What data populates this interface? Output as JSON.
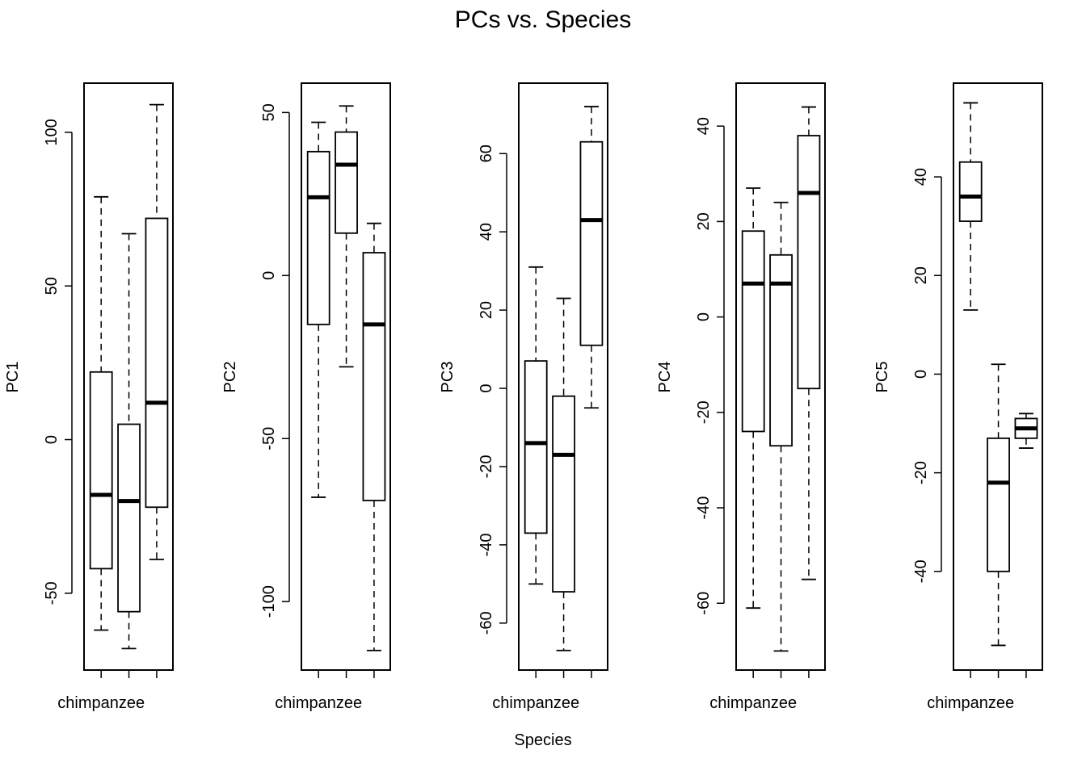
{
  "figure": {
    "title": "PCs vs. Species",
    "xlabel": "Species"
  },
  "chart_data": [
    {
      "type": "box",
      "ylabel": "PC1",
      "categories": [
        "chimpanzee",
        "",
        ""
      ],
      "visible_category_label": "chimpanzee",
      "ylim": [
        -75,
        116
      ],
      "yticks": [
        -50,
        0,
        50,
        100
      ],
      "boxes": [
        {
          "whisker_low": -62,
          "q1": -42,
          "median": -18,
          "q3": 22,
          "whisker_high": 79
        },
        {
          "whisker_low": -68,
          "q1": -56,
          "median": -20,
          "q3": 5,
          "whisker_high": 67
        },
        {
          "whisker_low": -39,
          "q1": -22,
          "median": 12,
          "q3": 72,
          "whisker_high": 109
        }
      ]
    },
    {
      "type": "box",
      "ylabel": "PC2",
      "categories": [
        "chimpanzee",
        "",
        ""
      ],
      "visible_category_label": "chimpanzee",
      "ylim": [
        -121,
        59
      ],
      "yticks": [
        -100,
        -50,
        0,
        50
      ],
      "boxes": [
        {
          "whisker_low": -68,
          "q1": -15,
          "median": 24,
          "q3": 38,
          "whisker_high": 47
        },
        {
          "whisker_low": -28,
          "q1": 13,
          "median": 34,
          "q3": 44,
          "whisker_high": 52
        },
        {
          "whisker_low": -115,
          "q1": -69,
          "median": -15,
          "q3": 7,
          "whisker_high": 16
        }
      ]
    },
    {
      "type": "box",
      "ylabel": "PC3",
      "categories": [
        "chimpanzee",
        "",
        ""
      ],
      "visible_category_label": "chimpanzee",
      "ylim": [
        -72,
        78
      ],
      "yticks": [
        -60,
        -40,
        -20,
        0,
        20,
        40,
        60
      ],
      "boxes": [
        {
          "whisker_low": -50,
          "q1": -37,
          "median": -14,
          "q3": 7,
          "whisker_high": 31
        },
        {
          "whisker_low": -67,
          "q1": -52,
          "median": -17,
          "q3": -2,
          "whisker_high": 23
        },
        {
          "whisker_low": -5,
          "q1": 11,
          "median": 43,
          "q3": 63,
          "whisker_high": 72
        }
      ]
    },
    {
      "type": "box",
      "ylabel": "PC4",
      "categories": [
        "chimpanzee",
        "",
        ""
      ],
      "visible_category_label": "chimpanzee",
      "ylim": [
        -74,
        49
      ],
      "yticks": [
        -60,
        -40,
        -20,
        0,
        20,
        40
      ],
      "boxes": [
        {
          "whisker_low": -61,
          "q1": -24,
          "median": 7,
          "q3": 18,
          "whisker_high": 27
        },
        {
          "whisker_low": -70,
          "q1": -27,
          "median": 7,
          "q3": 13,
          "whisker_high": 24
        },
        {
          "whisker_low": -55,
          "q1": -15,
          "median": 26,
          "q3": 38,
          "whisker_high": 44
        }
      ]
    },
    {
      "type": "box",
      "ylabel": "PC5",
      "categories": [
        "chimpanzee",
        "",
        ""
      ],
      "visible_category_label": "chimpanzee",
      "ylim": [
        -60,
        59
      ],
      "yticks": [
        -40,
        -20,
        0,
        20,
        40
      ],
      "boxes": [
        {
          "whisker_low": 13,
          "q1": 31,
          "median": 36,
          "q3": 43,
          "whisker_high": 55
        },
        {
          "whisker_low": -55,
          "q1": -40,
          "median": -22,
          "q3": -13,
          "whisker_high": 2
        },
        {
          "whisker_low": -15,
          "q1": -13,
          "median": -11,
          "q3": -9,
          "whisker_high": -8
        }
      ]
    }
  ]
}
